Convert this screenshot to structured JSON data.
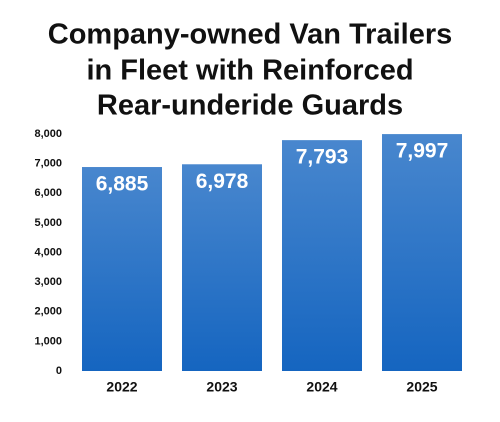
{
  "chart_data": {
    "type": "bar",
    "title": [
      "Company-owned Van Trailers",
      "in Fleet with Reinforced",
      "Rear-underide Guards"
    ],
    "categories": [
      "2022",
      "2023",
      "2024",
      "2025"
    ],
    "values": [
      6885,
      6978,
      7793,
      7997
    ],
    "value_labels": [
      "6,885",
      "6,978",
      "7,793",
      "7,997"
    ],
    "color": "#1565c0",
    "ylim": [
      0,
      8000
    ],
    "yticks": [
      0,
      {
        "value": 1000,
        "label": "1,000"
      },
      {
        "value": 2000,
        "label": "2,000"
      },
      {
        "value": 3000,
        "label": "3,000"
      },
      {
        "value": 4000,
        "label": "4,000"
      },
      {
        "value": 5000,
        "label": "5,000"
      },
      {
        "value": 6000,
        "label": "6,000"
      },
      {
        "value": 7000,
        "label": "7,000"
      },
      {
        "value": 8000,
        "label": "8,000"
      }
    ],
    "grid": false
  }
}
